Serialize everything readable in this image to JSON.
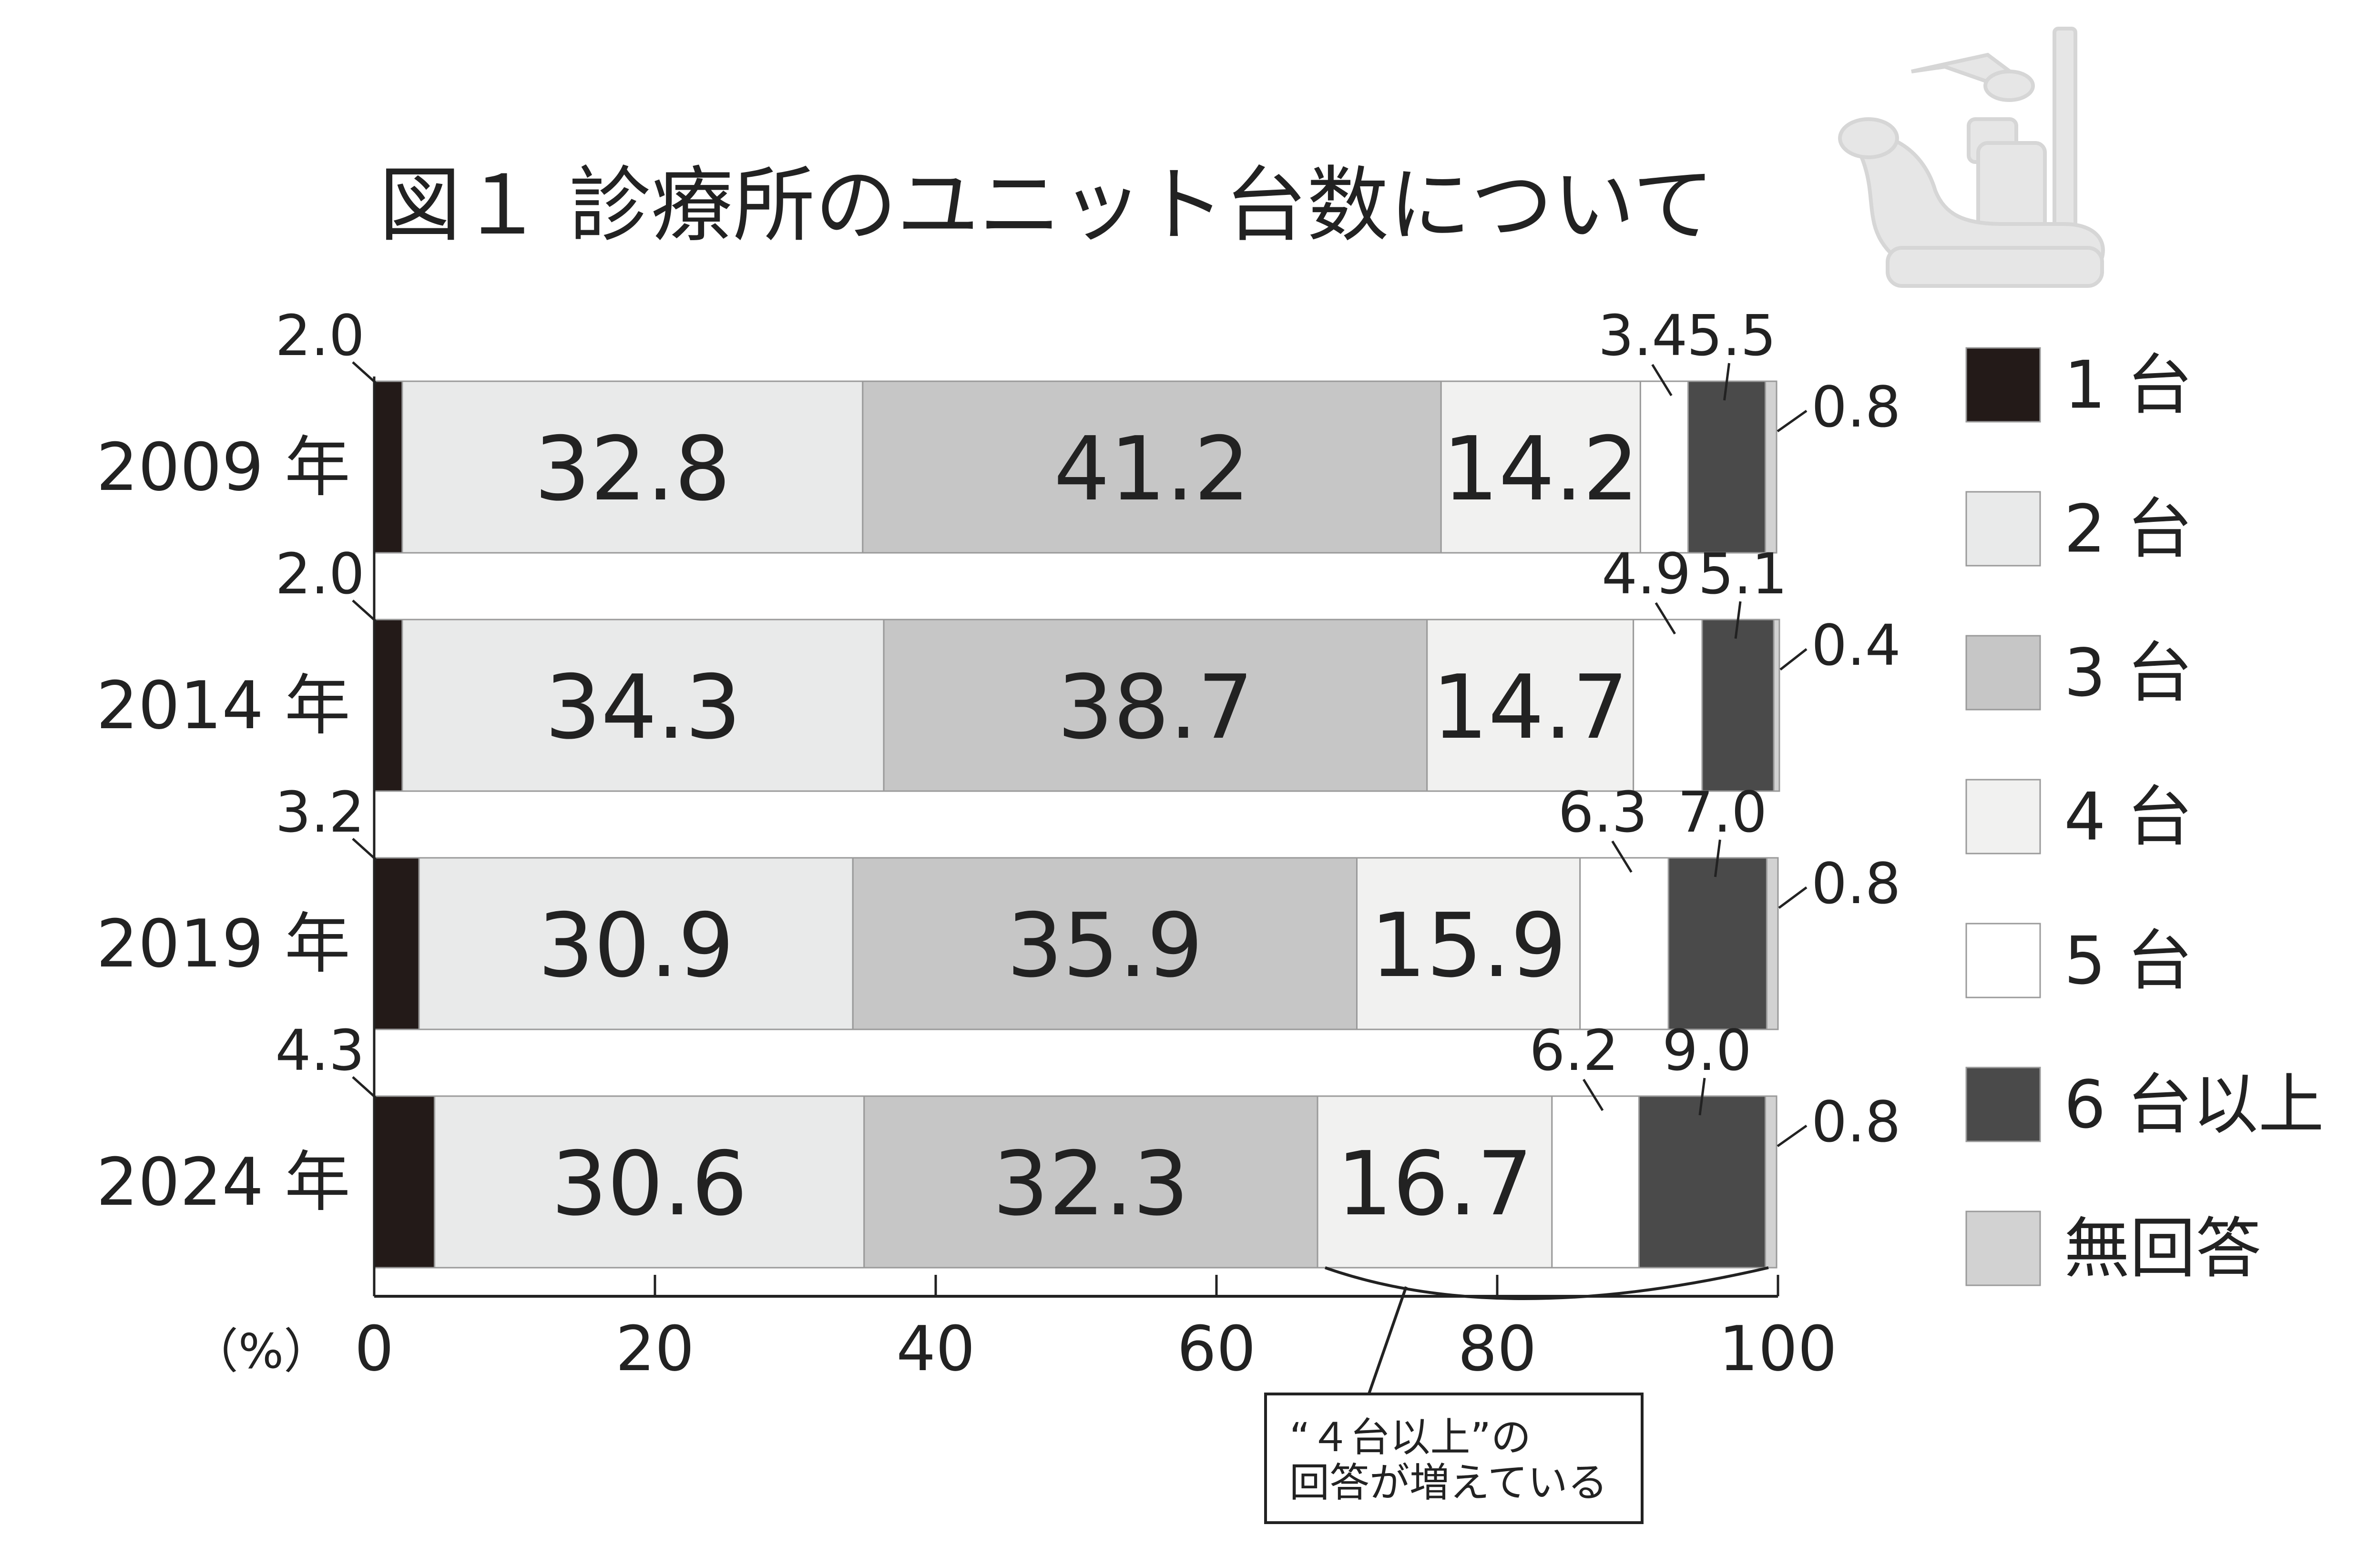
{
  "chart_data": {
    "type": "bar",
    "orientation": "horizontal",
    "stacked": true,
    "title": "図１ 診療所のユニット台数について",
    "xlabel": "（%）",
    "xlim": [
      0,
      100
    ],
    "xticks": [
      "0",
      "20",
      "40",
      "60",
      "80",
      "100"
    ],
    "categories": [
      "2009 年",
      "2014 年",
      "2019 年",
      "2024 年"
    ],
    "series": [
      {
        "name": "1 台",
        "color": "#231a18",
        "values": [
          2.0,
          2.0,
          3.2,
          4.3
        ],
        "labels": [
          "2.0",
          "2.0",
          "3.2",
          "4.3"
        ]
      },
      {
        "name": "2 台",
        "color": "#e9eaea",
        "values": [
          32.8,
          34.3,
          30.9,
          30.6
        ],
        "labels": [
          "32.8",
          "34.3",
          "30.9",
          "30.6"
        ]
      },
      {
        "name": "3 台",
        "color": "#c6c6c6",
        "values": [
          41.2,
          38.7,
          35.9,
          32.3
        ],
        "labels": [
          "41.2",
          "38.7",
          "35.9",
          "32.3"
        ]
      },
      {
        "name": "4 台",
        "color": "#f1f1f0",
        "values": [
          14.2,
          14.7,
          15.9,
          16.7
        ],
        "labels": [
          "14.2",
          "14.7",
          "15.9",
          "16.7"
        ]
      },
      {
        "name": "5 台",
        "color": "#ffffff",
        "values": [
          3.4,
          4.9,
          6.3,
          6.2
        ],
        "labels": [
          "3.4",
          "4.9",
          "6.3",
          "6.2"
        ]
      },
      {
        "name": "6 台以上",
        "color": "#4a4a4a",
        "values": [
          5.5,
          5.1,
          7.0,
          9.0
        ],
        "labels": [
          "5.5",
          "5.1",
          "7.0",
          "9.0"
        ]
      },
      {
        "name": "無回答",
        "color": "#d2d2d2",
        "values": [
          0.8,
          0.4,
          0.8,
          0.8
        ],
        "labels": [
          "0.8",
          "0.4",
          "0.8",
          "0.8"
        ]
      }
    ],
    "legend_position": "right",
    "annotation": {
      "line1": "“４台以上”の",
      "line2": "回答が増えている"
    },
    "illustration": "dental-chair-icon"
  }
}
